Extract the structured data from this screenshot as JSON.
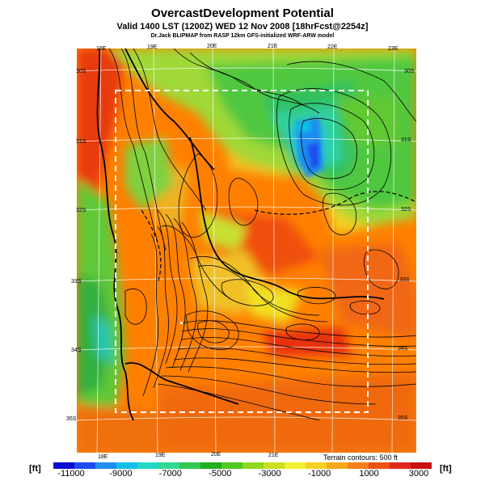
{
  "title": "OvercastDevelopment Potential",
  "subtitle": "Valid 1400 LST (1200Z) WED 12 Nov 2008 [18hrFcst@2254z]",
  "credit": "Dr.Jack BLIPMAP from RASP 12km GFS-initialized WRF-ARW model",
  "terrain_note": "Terrain contours: 500 ft",
  "unit_label": "[ft]",
  "top_lon_labels": [
    "18E",
    "19E",
    "20E",
    "21E",
    "22E",
    "23E"
  ],
  "bottom_lon_labels": [
    "18E",
    "19E",
    "20E",
    "21E"
  ],
  "left_lat_labels": [
    "30S",
    "31S",
    "32S",
    "33S",
    "34S",
    "35S"
  ],
  "right_lat_labels": [
    "30S",
    "31S",
    "32S",
    "33S",
    "34S",
    "35S"
  ],
  "colorbar": {
    "tick_labels": [
      "-11000",
      "-9000",
      "-7000",
      "-5000",
      "-3000",
      "-1000",
      "1000",
      "3000"
    ],
    "colors": [
      "#0a0ad0",
      "#1a4cf0",
      "#1f8cf0",
      "#10c0e8",
      "#20d8c8",
      "#30d890",
      "#30c850",
      "#20b020",
      "#50c820",
      "#90d820",
      "#c8e020",
      "#f0f030",
      "#f8d020",
      "#f8a818",
      "#f88018",
      "#f05010",
      "#e02818",
      "#c81010"
    ]
  },
  "legend_colors": {
    "map_background": "#ff8000",
    "deep_orange": "#f06010",
    "red": "#e82810",
    "yellow": "#f0e020",
    "green": "#40c040",
    "light_green": "#a0e040",
    "cyan": "#30d0c0",
    "blue": "#1a8cf0"
  }
}
